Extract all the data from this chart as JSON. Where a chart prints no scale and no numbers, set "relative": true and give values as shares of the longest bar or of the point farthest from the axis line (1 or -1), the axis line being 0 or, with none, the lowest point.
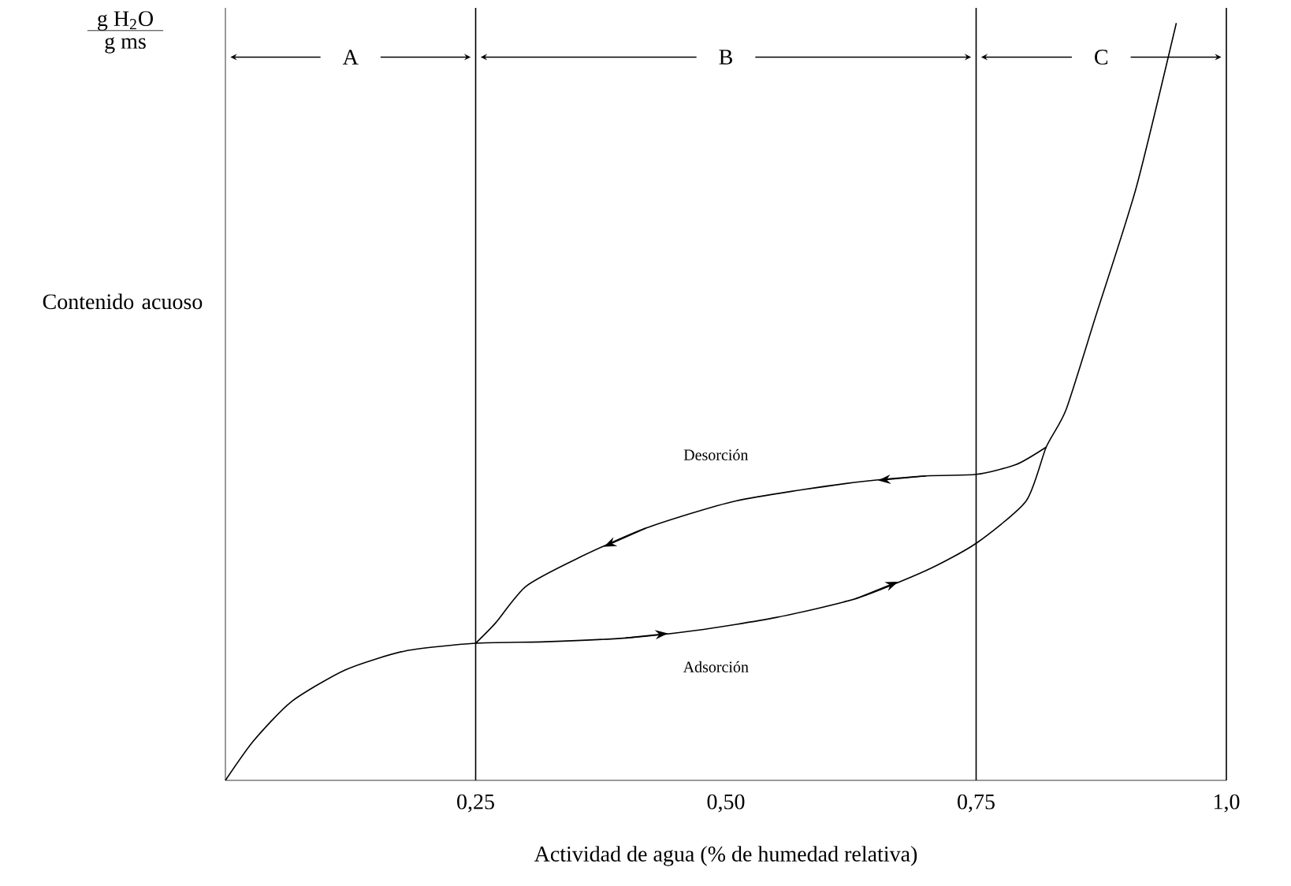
{
  "chart_data": {
    "type": "line",
    "relative": true,
    "xlabel": "Actividad de agua (% de humedad relativa)",
    "ylabel": "Contenido acuoso",
    "annotations": [
      "g H$_{2}$O",
      "g ms",
      "A",
      "B",
      "C"
    ],
    "xlim": [
      0,
      1.0
    ],
    "xticks": [
      {
        "value": 0.25,
        "label": "0,25"
      },
      {
        "value": 0.5,
        "label": "0,50"
      },
      {
        "value": 0.75,
        "label": "0,75"
      },
      {
        "value": 1.0,
        "label": "1,0"
      }
    ],
    "series": [
      {
        "name": "Adsorción",
        "color": "#000000",
        "x": [
          0,
          0.028,
          0.066,
          0.12,
          0.18,
          0.25,
          0.32,
          0.4,
          0.47,
          0.55,
          0.63,
          0.7,
          0.75,
          0.8,
          0.82,
          0.84,
          0.87,
          0.91,
          0.95
        ],
        "values": [
          0,
          0.052,
          0.104,
          0.146,
          0.171,
          0.181,
          0.183,
          0.188,
          0.198,
          0.215,
          0.24,
          0.277,
          0.313,
          0.369,
          0.44,
          0.49,
          0.615,
          0.783,
          1.0
        ]
      },
      {
        "name": "Desorción",
        "color": "#000000",
        "x": [
          0.82,
          0.79,
          0.75,
          0.7,
          0.62,
          0.51,
          0.42,
          0.35,
          0.3,
          0.27,
          0.25
        ],
        "values": [
          0.44,
          0.417,
          0.404,
          0.402,
          0.392,
          0.369,
          0.333,
          0.292,
          0.256,
          0.208,
          0.181
        ]
      }
    ],
    "ref_lines": [
      {
        "axis": "x",
        "value": 0.25
      },
      {
        "axis": "x",
        "value": 0.75
      }
    ],
    "grid": false,
    "marker": "none",
    "line_style": "solid"
  }
}
